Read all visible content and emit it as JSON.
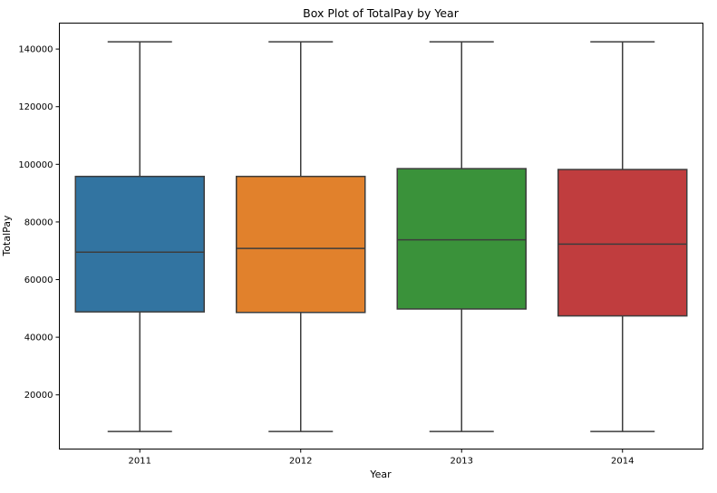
{
  "chart_data": {
    "type": "box",
    "title": "Box Plot of TotalPay by Year",
    "xlabel": "Year",
    "ylabel": "TotalPay",
    "categories": [
      "2011",
      "2012",
      "2013",
      "2014"
    ],
    "ylim": [
      1200,
      149000
    ],
    "yticks": [
      20000,
      40000,
      60000,
      80000,
      100000,
      120000,
      140000
    ],
    "ytick_labels": [
      "20000",
      "40000",
      "60000",
      "80000",
      "100000",
      "120000",
      "140000"
    ],
    "grid": false,
    "legend": "none",
    "boxes": [
      {
        "category": "2011",
        "whislo": 7300,
        "q1": 48800,
        "med": 69500,
        "q3": 95800,
        "whishi": 142500,
        "color": "#3274a1"
      },
      {
        "category": "2012",
        "whislo": 7300,
        "q1": 48600,
        "med": 70800,
        "q3": 95800,
        "whishi": 142500,
        "color": "#e1812c"
      },
      {
        "category": "2013",
        "whislo": 7300,
        "q1": 49800,
        "med": 73800,
        "q3": 98500,
        "whishi": 142500,
        "color": "#3a923a"
      },
      {
        "category": "2014",
        "whislo": 7300,
        "q1": 47400,
        "med": 72300,
        "q3": 98200,
        "whishi": 142500,
        "color": "#c03d3e"
      }
    ],
    "line_color": "#3d3d3d"
  }
}
